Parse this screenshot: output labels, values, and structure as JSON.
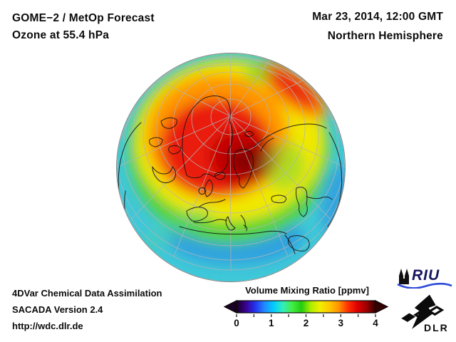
{
  "header": {
    "title_line1": "GOME−2 / MetOp Forecast",
    "title_line2": "Ozone at 55.4 hPa",
    "datetime": "Mar 23, 2014, 12:00 GMT",
    "hemisphere": "Northern Hemisphere"
  },
  "footer": {
    "line1": "4DVar Chemical Data Assimilation",
    "line2": "SACADA Version 2.4",
    "line3": "http://wdc.dlr.de"
  },
  "colorbar": {
    "title": "Volume Mixing Ratio [ppmv]",
    "min": 0,
    "max": 4,
    "tick_labels": [
      "0",
      "1",
      "2",
      "3",
      "4"
    ],
    "gradient": [
      "#1a0022",
      "#3a0090",
      "#2233ee",
      "#2288ff",
      "#00ccff",
      "#33eebb",
      "#44ee44",
      "#22cc11",
      "#aaee00",
      "#f2ee00",
      "#ffc800",
      "#ff9500",
      "#ff3300",
      "#e00000",
      "#a00000",
      "#330000"
    ]
  },
  "globe": {
    "field_colors": {
      "low_cyan": "#3fc8d8",
      "blue_patch": "#2f9ce0",
      "green": "#55d435",
      "yellow": "#f0e800",
      "orange": "#ff9500",
      "red": "#ea1a10",
      "dark_red": "#8a0000"
    }
  },
  "logos": {
    "riu_label": "RIU",
    "dlr_label": "DLR"
  }
}
